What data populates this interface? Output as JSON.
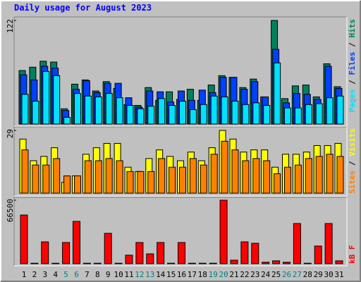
{
  "chart_data": [
    {
      "type": "bar",
      "title": "Daily usage for August 2023",
      "ylim": [
        0,
        122
      ],
      "yticks": [
        122
      ],
      "series": [
        {
          "name": "Hits",
          "color": "#00805c",
          "values": [
            63,
            67,
            74,
            73,
            18,
            47,
            52,
            39,
            50,
            42,
            23,
            22,
            43,
            28,
            38,
            29,
            41,
            28,
            46,
            57,
            55,
            43,
            53,
            32,
            122,
            30,
            45,
            46,
            32,
            71,
            44
          ]
        },
        {
          "name": "Files",
          "color": "#0040ff",
          "values": [
            58,
            52,
            68,
            66,
            16,
            41,
            51,
            37,
            48,
            48,
            31,
            20,
            39,
            38,
            26,
            39,
            28,
            40,
            37,
            55,
            55,
            41,
            50,
            32,
            88,
            25,
            36,
            35,
            29,
            68,
            42
          ]
        },
        {
          "name": "Pages",
          "color": "#00e0ff",
          "values": [
            35,
            27,
            62,
            57,
            8,
            36,
            33,
            32,
            36,
            31,
            22,
            18,
            21,
            30,
            22,
            27,
            17,
            23,
            33,
            32,
            27,
            23,
            25,
            22,
            72,
            19,
            19,
            23,
            24,
            31,
            33
          ]
        }
      ]
    },
    {
      "type": "bar",
      "ylim": [
        0,
        29
      ],
      "yticks": [
        29
      ],
      "series": [
        {
          "name": "Visits",
          "color": "#ffff00",
          "values": [
            25,
            15,
            17,
            21,
            5,
            8,
            18,
            21,
            23,
            23,
            12,
            10,
            16,
            20,
            17,
            15,
            19,
            15,
            21,
            29,
            25,
            19,
            20,
            20,
            12,
            18,
            18,
            19,
            22,
            22,
            23
          ]
        },
        {
          "name": "Sites",
          "color": "#ff8000",
          "values": [
            20,
            13,
            13,
            16,
            8,
            8,
            15,
            15,
            16,
            15,
            10,
            10,
            10,
            16,
            12,
            12,
            16,
            13,
            18,
            24,
            20,
            15,
            16,
            15,
            9,
            12,
            13,
            16,
            17,
            18,
            17
          ]
        }
      ]
    },
    {
      "type": "bar",
      "ylim": [
        0,
        66500
      ],
      "yticks": [
        66500
      ],
      "categories": [
        "1",
        "2",
        "3",
        "4",
        "5",
        "6",
        "7",
        "8",
        "9",
        "10",
        "11",
        "12",
        "13",
        "14",
        "15",
        "16",
        "17",
        "18",
        "19",
        "20",
        "21",
        "22",
        "23",
        "24",
        "25",
        "26",
        "27",
        "28",
        "29",
        "30",
        "31"
      ],
      "highlight_categories": [
        "5",
        "6",
        "12",
        "13",
        "19",
        "20",
        "26",
        "27"
      ],
      "highlight_color": "#008080",
      "series": [
        {
          "name": "kB F",
          "color": "#ff0000",
          "values": [
            51000,
            500,
            22900,
            500,
            22200,
            44300,
            500,
            500,
            31800,
            500,
            8900,
            22200,
            10300,
            22200,
            500,
            22200,
            500,
            500,
            500,
            66500,
            3700,
            22900,
            21400,
            1500,
            3000,
            1500,
            42100,
            500,
            18500,
            42100,
            3000
          ]
        }
      ]
    }
  ],
  "legend_separator": "/"
}
